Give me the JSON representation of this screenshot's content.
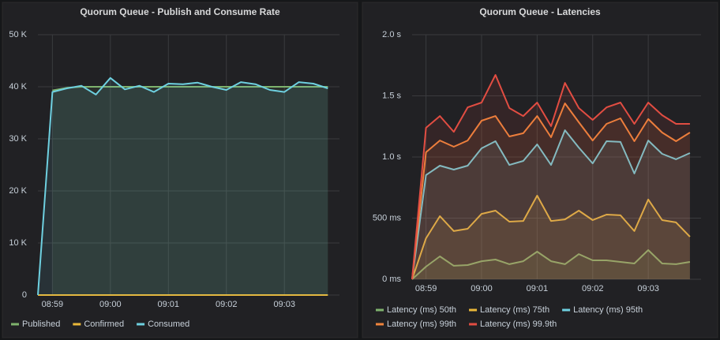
{
  "chart_data": [
    {
      "type": "line",
      "title": "Quorum Queue - Publish and Consume Rate",
      "x": [
        538.75,
        539,
        539.25,
        539.5,
        539.75,
        540,
        540.25,
        540.5,
        540.75,
        541,
        541.25,
        541.5,
        541.75,
        542,
        542.25,
        542.5,
        542.75,
        543,
        543.25,
        543.5,
        543.75
      ],
      "xlim": [
        538.75,
        543.95
      ],
      "xticks": [
        {
          "value": 539,
          "label": "08:59"
        },
        {
          "value": 540,
          "label": "09:00"
        },
        {
          "value": 541,
          "label": "09:01"
        },
        {
          "value": 542,
          "label": "09:02"
        },
        {
          "value": 543,
          "label": "09:03"
        }
      ],
      "ylim": [
        0,
        50000
      ],
      "yticks": [
        0,
        {
          "value": 10000,
          "label": "10 K"
        },
        {
          "value": 20000,
          "label": "20 K"
        },
        {
          "value": 30000,
          "label": "30 K"
        },
        {
          "value": 40000,
          "label": "40 K"
        },
        {
          "value": 50000,
          "label": "50 K"
        }
      ],
      "grid": true,
      "series": [
        {
          "name": "Published",
          "color": "#7eb26d",
          "values": [
            null,
            39300,
            39800,
            40000,
            40000,
            40000,
            40000,
            40000,
            40000,
            40000,
            40000,
            40000,
            40000,
            40000,
            40000,
            40000,
            40000,
            40000,
            40000,
            40000,
            40000
          ]
        },
        {
          "name": "Confirmed",
          "color": "#eab839",
          "values": [
            0,
            0,
            0,
            0,
            0,
            0,
            0,
            0,
            0,
            0,
            0,
            0,
            0,
            0,
            0,
            0,
            0,
            0,
            0,
            0,
            0
          ]
        },
        {
          "name": "Consumed",
          "color": "#6ed0e0",
          "values": [
            0,
            39000,
            39700,
            40200,
            38500,
            41700,
            39500,
            40200,
            39000,
            40600,
            40500,
            40800,
            40000,
            39400,
            40900,
            40500,
            39400,
            39000,
            40900,
            40600,
            39700
          ]
        }
      ]
    },
    {
      "type": "line",
      "title": "Quorum Queue - Latencies",
      "x": [
        538.75,
        539,
        539.25,
        539.5,
        539.75,
        540,
        540.25,
        540.5,
        540.75,
        541,
        541.25,
        541.5,
        541.75,
        542,
        542.25,
        542.5,
        542.75,
        543,
        543.25,
        543.5,
        543.75
      ],
      "xlim": [
        538.75,
        543.95
      ],
      "xticks": [
        {
          "value": 539,
          "label": "08:59"
        },
        {
          "value": 540,
          "label": "09:00"
        },
        {
          "value": 541,
          "label": "09:01"
        },
        {
          "value": 542,
          "label": "09:02"
        },
        {
          "value": 543,
          "label": "09:03"
        }
      ],
      "ylim": [
        0,
        2000
      ],
      "yticks": [
        {
          "value": 0,
          "label": "0 ms"
        },
        {
          "value": 500,
          "label": "500 ms"
        },
        {
          "value": 1000,
          "label": "1.0 s"
        },
        {
          "value": 1500,
          "label": "1.5 s"
        },
        {
          "value": 2000,
          "label": "2.0 s"
        }
      ],
      "grid": true,
      "series": [
        {
          "name": "Latency (ms) 50th",
          "color": "#7eb26d",
          "values": [
            0,
            103,
            187,
            110,
            116,
            148,
            161,
            123,
            148,
            226,
            148,
            123,
            206,
            155,
            155,
            142,
            129,
            239,
            129,
            123,
            142
          ]
        },
        {
          "name": "Latency (ms) 75th",
          "color": "#eab839",
          "values": [
            0,
            335,
            516,
            394,
            413,
            535,
            561,
            471,
            477,
            684,
            477,
            490,
            561,
            484,
            529,
            523,
            394,
            652,
            484,
            465,
            348
          ]
        },
        {
          "name": "Latency (ms) 95th",
          "color": "#6ed0e0",
          "values": [
            0,
            852,
            929,
            897,
            929,
            1071,
            1129,
            935,
            968,
            1103,
            935,
            1219,
            1077,
            948,
            1129,
            1123,
            865,
            1135,
            1026,
            981,
            1032
          ]
        },
        {
          "name": "Latency (ms) 99th",
          "color": "#ef843c",
          "values": [
            0,
            1039,
            1135,
            1084,
            1135,
            1297,
            1335,
            1168,
            1194,
            1335,
            1161,
            1439,
            1284,
            1135,
            1271,
            1316,
            1129,
            1310,
            1200,
            1129,
            1200
          ]
        },
        {
          "name": "Latency (ms) 99.9th",
          "color": "#e24d42",
          "values": [
            0,
            1239,
            1335,
            1206,
            1406,
            1445,
            1671,
            1400,
            1335,
            1445,
            1252,
            1606,
            1400,
            1303,
            1406,
            1445,
            1271,
            1445,
            1342,
            1271,
            1271
          ]
        }
      ]
    }
  ]
}
